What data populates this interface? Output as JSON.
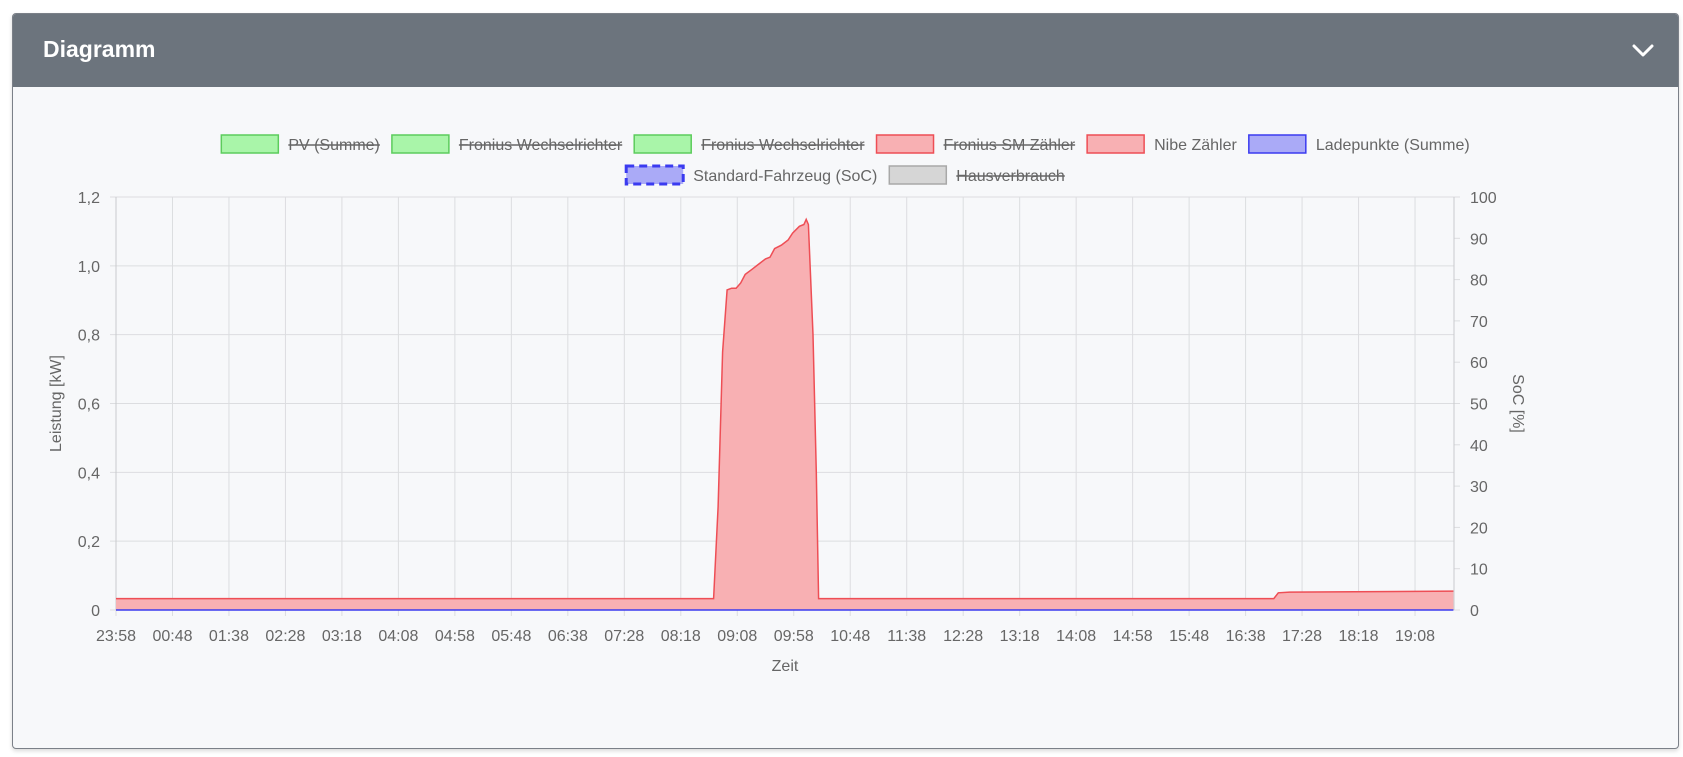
{
  "panel": {
    "title": "Diagramm",
    "collapse_icon": "chevron-down-icon"
  },
  "chart_data": {
    "type": "area",
    "xlabel": "Zeit",
    "ylabel": "Leistung [kW]",
    "y2label": "SoC [%]",
    "ylim": [
      0,
      1.2
    ],
    "y2lim": [
      0,
      100
    ],
    "yticks": [
      "0",
      "0,2",
      "0,4",
      "0,6",
      "0,8",
      "1,0",
      "1,2"
    ],
    "y2ticks": [
      "0",
      "10",
      "20",
      "30",
      "40",
      "50",
      "60",
      "70",
      "80",
      "90",
      "100"
    ],
    "xticks": [
      "23:58",
      "00:48",
      "01:38",
      "02:28",
      "03:18",
      "04:08",
      "04:58",
      "05:48",
      "06:38",
      "07:28",
      "08:18",
      "09:08",
      "09:58",
      "10:48",
      "11:38",
      "12:28",
      "13:18",
      "14:08",
      "14:58",
      "15:48",
      "16:38",
      "17:28",
      "18:18",
      "19:08"
    ],
    "grid": true,
    "legend_position": "top",
    "legend": [
      {
        "label": "PV (Summe)",
        "fill": "#a9f5a9",
        "border": "#5ccc5c",
        "hidden": true,
        "dashed": false
      },
      {
        "label": "Fronius Wechselrichter",
        "fill": "#a9f5a9",
        "border": "#5ccc5c",
        "hidden": true,
        "dashed": false
      },
      {
        "label": "Fronius Wechselrichter",
        "fill": "#a9f5a9",
        "border": "#5ccc5c",
        "hidden": true,
        "dashed": false
      },
      {
        "label": "Fronius SM Zähler",
        "fill": "#f8b0b3",
        "border": "#ee4e55",
        "hidden": true,
        "dashed": false
      },
      {
        "label": "Nibe Zähler",
        "fill": "#f8b0b3",
        "border": "#ee4e55",
        "hidden": false,
        "dashed": false
      },
      {
        "label": "Ladepunkte (Summe)",
        "fill": "#aaaaf7",
        "border": "#3b3bf0",
        "hidden": false,
        "dashed": false
      },
      {
        "label": "Standard-Fahrzeug (SoC)",
        "fill": "#aaaaf7",
        "border": "#3b3bf0",
        "hidden": false,
        "dashed": true
      },
      {
        "label": "Hausverbrauch",
        "fill": "#d6d6d6",
        "border": "#a8a8a8",
        "hidden": true,
        "dashed": false
      }
    ],
    "series": [
      {
        "name": "Nibe Zähler",
        "color": "#ee4e55",
        "fill": "#f8b0b3",
        "points": [
          [
            "23:58",
            0.033
          ],
          [
            "08:47",
            0.033
          ],
          [
            "08:51",
            0.3
          ],
          [
            "08:55",
            0.75
          ],
          [
            "08:59",
            0.93
          ],
          [
            "09:03",
            0.935
          ],
          [
            "09:07",
            0.935
          ],
          [
            "09:11",
            0.95
          ],
          [
            "09:15",
            0.975
          ],
          [
            "09:21",
            0.99
          ],
          [
            "09:27",
            1.005
          ],
          [
            "09:33",
            1.02
          ],
          [
            "09:37",
            1.025
          ],
          [
            "09:41",
            1.05
          ],
          [
            "09:47",
            1.06
          ],
          [
            "09:53",
            1.075
          ],
          [
            "09:57",
            1.095
          ],
          [
            "10:03",
            1.115
          ],
          [
            "10:07",
            1.12
          ],
          [
            "10:09",
            1.135
          ],
          [
            "10:11",
            1.12
          ],
          [
            "10:15",
            0.8
          ],
          [
            "10:18",
            0.4
          ],
          [
            "10:20",
            0.033
          ],
          [
            "17:03",
            0.033
          ],
          [
            "17:07",
            0.05
          ],
          [
            "17:17",
            0.052
          ],
          [
            "19:42",
            0.055
          ]
        ]
      },
      {
        "name": "Ladepunkte (Summe)",
        "color": "#3b3bf0",
        "fill": "#aaaaf7",
        "points": [
          [
            "23:58",
            0.0
          ],
          [
            "19:42",
            0.0
          ]
        ]
      }
    ]
  }
}
